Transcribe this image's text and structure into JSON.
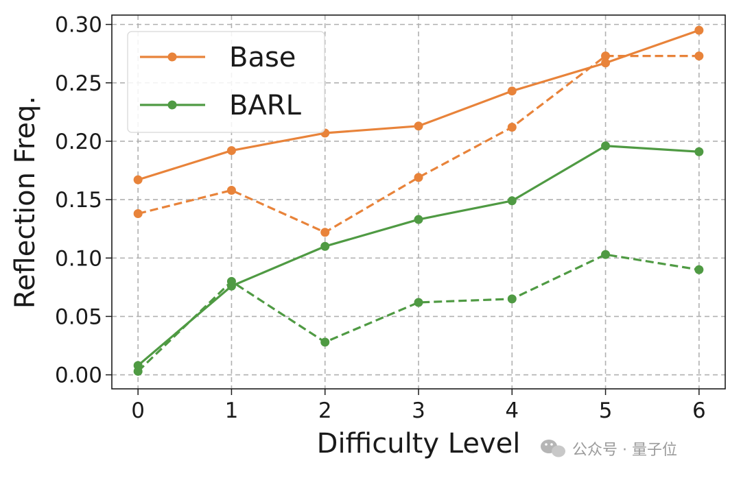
{
  "chart_data": {
    "type": "line",
    "xlabel": "Difficulty Level",
    "ylabel": "Reflection Freq.",
    "x": [
      0,
      1,
      2,
      3,
      4,
      5,
      6
    ],
    "xlim": [
      -0.28,
      6.28
    ],
    "ylim": [
      -0.012,
      0.308
    ],
    "xticks": [
      "0",
      "1",
      "2",
      "3",
      "4",
      "5",
      "6"
    ],
    "yticks": [
      "0.00",
      "0.05",
      "0.10",
      "0.15",
      "0.20",
      "0.25",
      "0.30"
    ],
    "grid": true,
    "grid_style": "dashed",
    "legend_position": "top-left",
    "series": [
      {
        "name": "Base",
        "color": "#e8833a",
        "style": "solid",
        "marker": "circle",
        "values": [
          0.167,
          0.192,
          0.207,
          0.213,
          0.243,
          0.267,
          0.295
        ]
      },
      {
        "name": "",
        "color": "#e8833a",
        "style": "dashed",
        "marker": "circle",
        "values": [
          0.138,
          0.158,
          0.122,
          0.169,
          0.212,
          0.273,
          0.273
        ]
      },
      {
        "name": "BARL",
        "color": "#4f9a43",
        "style": "solid",
        "marker": "circle",
        "values": [
          0.008,
          0.076,
          0.11,
          0.133,
          0.149,
          0.196,
          0.191
        ]
      },
      {
        "name": "",
        "color": "#4f9a43",
        "style": "dashed",
        "marker": "circle",
        "values": [
          0.003,
          0.08,
          0.028,
          0.062,
          0.065,
          0.103,
          0.09
        ]
      }
    ]
  },
  "watermark": {
    "icon": "wechat-icon",
    "text": "公众号 · 量子位"
  }
}
